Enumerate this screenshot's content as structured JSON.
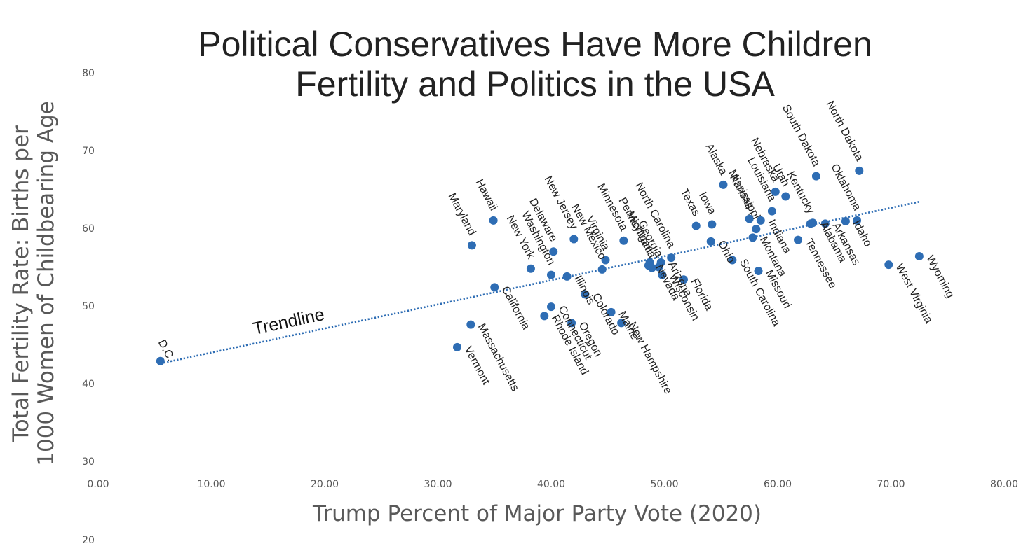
{
  "chart_data": {
    "type": "scatter",
    "title": "Political Conservatives Have More Children",
    "subtitle": "Fertility and Politics in the USA",
    "xlabel": "Trump Percent of Major Party Vote (2020)",
    "ylabel": [
      "Total Fertility Rate: Births per",
      "1000 Women of Childbearing Age"
    ],
    "xlim": [
      0,
      80
    ],
    "ylim": [
      30,
      80
    ],
    "x_ticks": [
      "0.00",
      "10.00",
      "20.00",
      "30.00",
      "40.00",
      "50.00",
      "60.00",
      "70.00",
      "80.00"
    ],
    "y_ticks": [
      "30",
      "40",
      "50",
      "60",
      "70",
      "80"
    ],
    "y_extra_tick": "20",
    "grid": false,
    "marker_color": "#2e6db4",
    "trendline": {
      "label": "Trendline",
      "x0": 5.5,
      "y0": 42.6,
      "x1": 72.5,
      "y1": 63.4
    },
    "points": [
      {
        "label": "D.C.",
        "x": 5.5,
        "y": 42.9
      },
      {
        "label": "Vermont",
        "x": 31.7,
        "y": 44.7
      },
      {
        "label": "Massachusetts",
        "x": 32.9,
        "y": 47.6
      },
      {
        "label": "Maryland",
        "x": 33.0,
        "y": 57.8
      },
      {
        "label": "Hawaii",
        "x": 34.9,
        "y": 61.0
      },
      {
        "label": "California",
        "x": 35.0,
        "y": 52.4
      },
      {
        "label": "New York",
        "x": 38.2,
        "y": 54.8
      },
      {
        "label": "Washington",
        "x": 40.0,
        "y": 54.0
      },
      {
        "label": "Delaware",
        "x": 40.2,
        "y": 57.0
      },
      {
        "label": "Rhode Island",
        "x": 39.4,
        "y": 48.7
      },
      {
        "label": "Connecticut",
        "x": 40.0,
        "y": 49.9
      },
      {
        "label": "Illinois",
        "x": 41.4,
        "y": 53.8
      },
      {
        "label": "Oregon",
        "x": 41.8,
        "y": 47.8
      },
      {
        "label": "New Jersey",
        "x": 42.0,
        "y": 58.6
      },
      {
        "label": "Colorado",
        "x": 43.0,
        "y": 51.5
      },
      {
        "label": "New Mexico",
        "x": 44.5,
        "y": 54.7
      },
      {
        "label": "Virginia",
        "x": 44.8,
        "y": 55.9
      },
      {
        "label": "Maine",
        "x": 45.3,
        "y": 49.2
      },
      {
        "label": "New Hampshire",
        "x": 46.2,
        "y": 47.8
      },
      {
        "label": "Minnesota",
        "x": 46.4,
        "y": 58.4
      },
      {
        "label": "Nevada",
        "x": 48.6,
        "y": 55.2
      },
      {
        "label": "Michigan",
        "x": 48.7,
        "y": 55.6
      },
      {
        "label": "Pennsylvania",
        "x": 48.9,
        "y": 54.9
      },
      {
        "label": "Georgia",
        "x": 49.5,
        "y": 55.0
      },
      {
        "label": "Arizona",
        "x": 49.7,
        "y": 55.6
      },
      {
        "label": "Wisconsin",
        "x": 49.8,
        "y": 54.0
      },
      {
        "label": "North Carolina",
        "x": 50.6,
        "y": 56.2
      },
      {
        "label": "Florida",
        "x": 51.7,
        "y": 53.4
      },
      {
        "label": "Texas",
        "x": 52.8,
        "y": 60.3
      },
      {
        "label": "Ohio",
        "x": 54.1,
        "y": 58.3
      },
      {
        "label": "Iowa",
        "x": 54.2,
        "y": 60.5
      },
      {
        "label": "Alaska",
        "x": 55.2,
        "y": 65.6
      },
      {
        "label": "South Carolina",
        "x": 56.0,
        "y": 55.9
      },
      {
        "label": "Kansas",
        "x": 57.5,
        "y": 61.2
      },
      {
        "label": "Montana",
        "x": 57.8,
        "y": 58.8
      },
      {
        "label": "Mississippi",
        "x": 58.1,
        "y": 59.9
      },
      {
        "label": "Missouri",
        "x": 58.3,
        "y": 54.5
      },
      {
        "label": "Indiana",
        "x": 58.5,
        "y": 61.0
      },
      {
        "label": "Louisiana",
        "x": 59.5,
        "y": 62.2
      },
      {
        "label": "Nebraska",
        "x": 59.8,
        "y": 64.7
      },
      {
        "label": "Utah",
        "x": 60.7,
        "y": 64.1
      },
      {
        "label": "Tennessee",
        "x": 61.8,
        "y": 58.5
      },
      {
        "label": "Kentucky",
        "x": 62.9,
        "y": 60.6
      },
      {
        "label": "Alabama",
        "x": 63.1,
        "y": 60.7
      },
      {
        "label": "South Dakota",
        "x": 63.4,
        "y": 66.7
      },
      {
        "label": "Arkansas",
        "x": 64.2,
        "y": 60.6
      },
      {
        "label": "Idaho",
        "x": 66.0,
        "y": 60.9
      },
      {
        "label": "Oklahoma",
        "x": 67.0,
        "y": 61.0
      },
      {
        "label": "North Dakota",
        "x": 67.2,
        "y": 67.4
      },
      {
        "label": "West Virginia",
        "x": 69.8,
        "y": 55.3
      },
      {
        "label": "Wyoming",
        "x": 72.5,
        "y": 56.4
      }
    ]
  }
}
